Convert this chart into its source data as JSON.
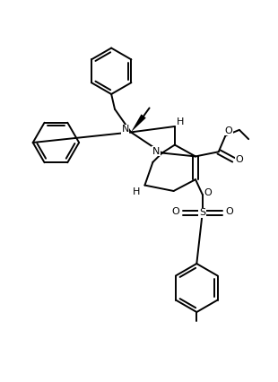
{
  "bg": "#ffffff",
  "lc": "#000000",
  "lw": 1.4,
  "fs": 8.0,
  "figsize": [
    3.1,
    4.26
  ],
  "dpi": 100,
  "xlim": [
    -1,
    11
  ],
  "ylim": [
    -0.5,
    14.5
  ]
}
